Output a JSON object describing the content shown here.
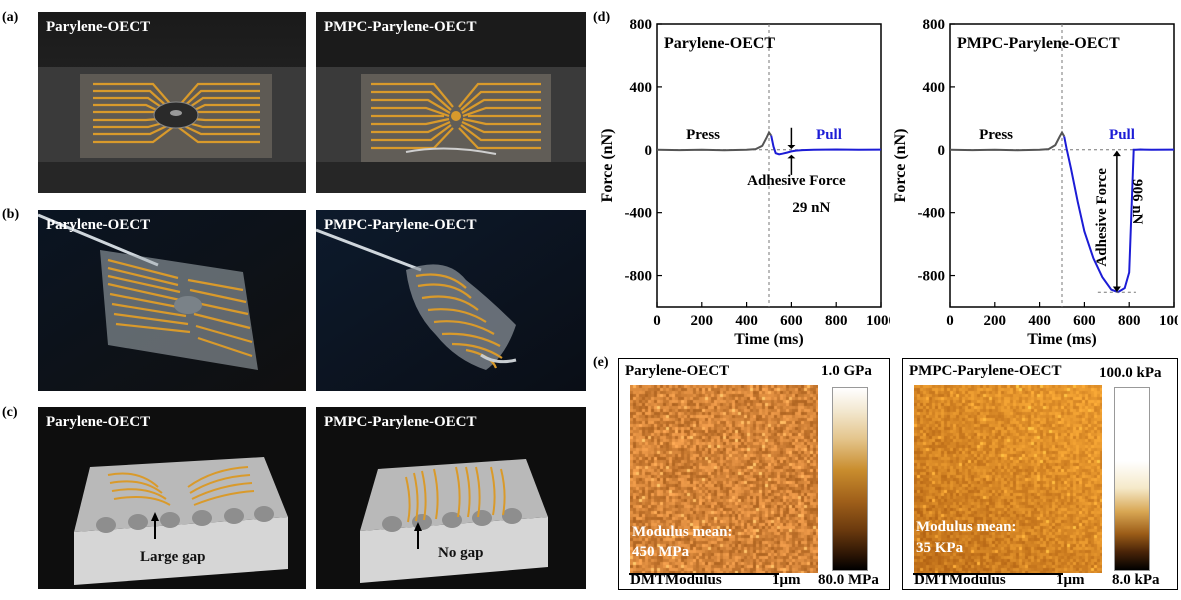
{
  "panel_labels": {
    "a": "(a)",
    "b": "(b)",
    "c": "(c)",
    "d": "(d)",
    "e": "(e)"
  },
  "photos": {
    "a_left_title": "Parylene-OECT",
    "a_right_title": "PMPC-Parylene-OECT",
    "b_left_title": "Parylene-OECT",
    "b_right_title": "PMPC-Parylene-OECT",
    "c_left_title": "Parylene-OECT",
    "c_right_title": "PMPC-Parylene-OECT",
    "c_left_annotation": "Large gap",
    "c_right_annotation": "No gap"
  },
  "chart_data": [
    {
      "type": "line",
      "title": "Parylene-OECT",
      "xlabel": "Time (ms)",
      "ylabel": "Force (nN)",
      "xlim": [
        0,
        1000
      ],
      "ylim": [
        -1000,
        800
      ],
      "xticks": [
        0,
        200,
        400,
        600,
        800,
        1000
      ],
      "yticks": [
        -800,
        -400,
        0,
        400,
        800
      ],
      "annotations": {
        "press": "Press",
        "pull": "Pull",
        "adhesive_label": "Adhesive Force",
        "adhesive_value": "29 nN"
      },
      "series": [
        {
          "name": "Press",
          "color": "#555555",
          "x": [
            0,
            100,
            200,
            300,
            400,
            440,
            470,
            490,
            500,
            510
          ],
          "y": [
            0,
            -2,
            0,
            -3,
            0,
            4,
            25,
            80,
            110,
            90
          ]
        },
        {
          "name": "Pull",
          "color": "#1c1cd6",
          "x": [
            510,
            520,
            530,
            545,
            560,
            580,
            600,
            620,
            650,
            700,
            800,
            900,
            1000
          ],
          "y": [
            90,
            20,
            -22,
            -29,
            -25,
            -18,
            -10,
            -5,
            -2,
            0,
            2,
            0,
            1
          ]
        }
      ]
    },
    {
      "type": "line",
      "title": "PMPC-Parylene-OECT",
      "xlabel": "Time (ms)",
      "ylabel": "Force (nN)",
      "xlim": [
        0,
        1000
      ],
      "ylim": [
        -1000,
        800
      ],
      "xticks": [
        0,
        200,
        400,
        600,
        800,
        1000
      ],
      "yticks": [
        -800,
        -400,
        0,
        400,
        800
      ],
      "annotations": {
        "press": "Press",
        "pull": "Pull",
        "adhesive_label": "Adhesive Force",
        "adhesive_value": "906 nN"
      },
      "series": [
        {
          "name": "Press",
          "color": "#555555",
          "x": [
            0,
            100,
            200,
            300,
            400,
            440,
            470,
            490,
            500,
            510
          ],
          "y": [
            0,
            -2,
            0,
            -3,
            0,
            4,
            30,
            85,
            110,
            85
          ]
        },
        {
          "name": "Pull",
          "color": "#1c1cd6",
          "x": [
            510,
            520,
            540,
            570,
            600,
            640,
            680,
            720,
            750,
            780,
            800,
            810,
            820,
            830,
            850,
            900,
            1000
          ],
          "y": [
            85,
            10,
            -120,
            -330,
            -520,
            -690,
            -810,
            -890,
            -905,
            -880,
            -780,
            -400,
            0,
            0,
            2,
            0,
            1
          ]
        }
      ]
    }
  ],
  "afm": {
    "left": {
      "title": "Parylene-OECT",
      "scale_max": "1.0 GPa",
      "scale_min": "80.0 MPa",
      "mean_label": "Modulus mean:",
      "mean_value": "450 MPa",
      "channel": "DMTModulus",
      "scalebar": "1μm"
    },
    "right": {
      "title": "PMPC-Parylene-OECT",
      "scale_max": "100.0 kPa",
      "scale_min": "8.0  kPa",
      "mean_label": "Modulus mean:",
      "mean_value": "35 KPa",
      "channel": "DMTModulus",
      "scalebar": "1μm"
    }
  },
  "colors": {
    "gold": "#d99a2b",
    "pull_blue": "#1c1cd6",
    "press_gray": "#555555"
  }
}
